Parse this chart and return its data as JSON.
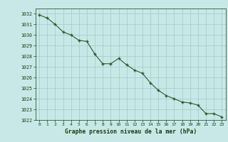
{
  "x": [
    0,
    1,
    2,
    3,
    4,
    5,
    6,
    7,
    8,
    9,
    10,
    11,
    12,
    13,
    14,
    15,
    16,
    17,
    18,
    19,
    20,
    21,
    22,
    23
  ],
  "y": [
    1031.9,
    1031.6,
    1031.0,
    1030.3,
    1030.0,
    1029.5,
    1029.4,
    1028.2,
    1027.3,
    1027.3,
    1027.8,
    1027.2,
    1026.7,
    1026.4,
    1025.5,
    1024.8,
    1024.3,
    1024.0,
    1023.7,
    1023.6,
    1023.4,
    1022.6,
    1022.6,
    1022.3
  ],
  "line_color": "#2d5a27",
  "marker_color": "#2d5a27",
  "bg_color": "#c8e8e8",
  "grid_color": "#a0c8c8",
  "xlabel": "Graphe pression niveau de la mer (hPa)",
  "xlabel_color": "#1a3a10",
  "tick_color": "#1a3a10",
  "ylim": [
    1022,
    1032.5
  ],
  "xlim": [
    -0.5,
    23.5
  ],
  "yticks": [
    1022,
    1023,
    1024,
    1025,
    1026,
    1027,
    1028,
    1029,
    1030,
    1031,
    1032
  ],
  "xticks": [
    0,
    1,
    2,
    3,
    4,
    5,
    6,
    7,
    8,
    9,
    10,
    11,
    12,
    13,
    14,
    15,
    16,
    17,
    18,
    19,
    20,
    21,
    22,
    23
  ]
}
